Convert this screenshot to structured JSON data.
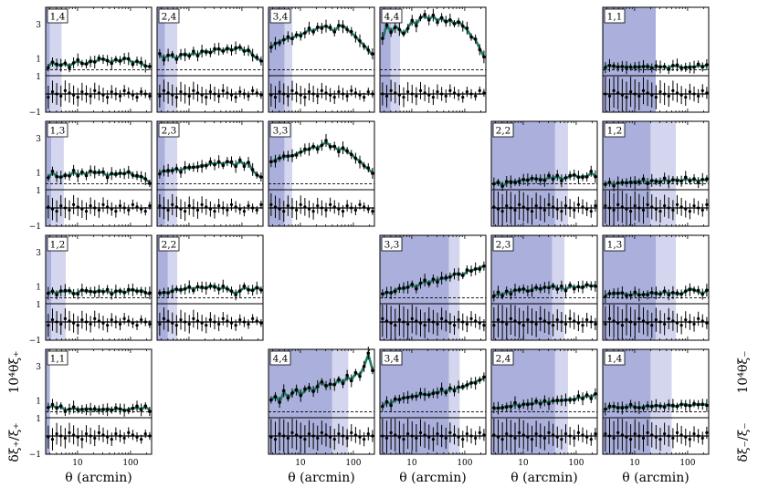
{
  "chart_data": {
    "type": "line",
    "x_axis": {
      "label": "θ (arcmin)",
      "scale": "log",
      "range": [
        2.5,
        250
      ],
      "tick_labels": [
        "10",
        "100"
      ]
    },
    "top_y_axis": {
      "range": [
        0,
        4
      ],
      "tick_labels": [
        "1",
        "3"
      ]
    },
    "bottom_y_axis": {
      "range": [
        -1,
        1
      ],
      "tick_labels": [
        "1",
        "−1"
      ]
    },
    "left_ylabel": {
      "ratio": "δξ₊/ξ₊",
      "main": "10⁴θξ₊"
    },
    "right_ylabel": {
      "ratio": "δξ₋/ξ₋",
      "main": "10⁴θξ₋"
    },
    "colors": {
      "curve": "#1f7a66",
      "scale_cut": "#8e94cf",
      "scale_cut_light": "#d3d6ee",
      "points": "#000000"
    },
    "panels": [
      {
        "label": "1,4",
        "column": 0,
        "row": 0,
        "set": "xi_plus",
        "cut": [
          2.5,
          3.0
        ],
        "light_cut": [
          3.0,
          5.0
        ],
        "y": [
          0.55,
          0.8,
          0.6,
          0.65,
          0.7,
          0.55,
          0.75,
          0.85,
          0.75,
          0.65,
          0.9,
          0.8,
          0.95,
          1.0,
          0.85,
          0.8,
          0.95,
          0.8,
          1.05,
          0.95,
          0.75,
          0.85,
          0.7,
          0.6,
          0.5
        ]
      },
      {
        "label": "2,4",
        "column": 1,
        "row": 0,
        "set": "xi_plus",
        "cut": [
          2.5,
          3.5
        ],
        "light_cut": [
          3.5,
          6.0
        ],
        "y": [
          1.25,
          1.0,
          1.2,
          1.15,
          1.0,
          1.2,
          1.3,
          1.15,
          1.35,
          1.2,
          1.4,
          1.45,
          1.35,
          1.5,
          1.6,
          1.4,
          1.65,
          1.5,
          1.55,
          1.7,
          1.4,
          1.55,
          1.2,
          1.0,
          0.9
        ]
      },
      {
        "label": "3,4",
        "column": 2,
        "row": 0,
        "set": "xi_plus",
        "cut": [
          2.5,
          5.0
        ],
        "light_cut": [
          5.0,
          7.0
        ],
        "y": [
          1.7,
          1.85,
          2.0,
          2.1,
          2.2,
          2.2,
          2.35,
          2.4,
          2.5,
          2.7,
          2.6,
          2.8,
          2.85,
          2.9,
          2.75,
          2.6,
          2.9,
          2.95,
          2.7,
          2.5,
          2.3,
          2.0,
          1.8,
          1.5,
          1.2
        ]
      },
      {
        "label": "4,4",
        "column": 3,
        "row": 0,
        "set": "xi_plus",
        "cut": [
          2.5,
          4.0
        ],
        "light_cut": [
          4.0,
          6.0
        ],
        "y": [
          2.1,
          3.0,
          2.5,
          2.9,
          2.7,
          2.4,
          2.8,
          3.2,
          3.0,
          3.4,
          3.5,
          3.3,
          3.5,
          3.2,
          3.4,
          3.1,
          3.3,
          3.0,
          3.2,
          2.9,
          2.7,
          2.3,
          2.1,
          1.6,
          1.1
        ]
      },
      {
        "label": "1,3",
        "column": 0,
        "row": 1,
        "set": "xi_plus",
        "cut": [
          2.5,
          3.2
        ],
        "light_cut": [
          3.2,
          5.5
        ],
        "y": [
          0.7,
          1.0,
          0.8,
          0.7,
          0.9,
          0.8,
          1.05,
          0.85,
          1.0,
          0.9,
          1.1,
          0.95,
          1.05,
          1.0,
          0.8,
          0.95,
          0.85,
          1.0,
          0.9,
          1.1,
          0.85,
          0.75,
          0.8,
          0.6,
          0.45
        ]
      },
      {
        "label": "2,3",
        "column": 1,
        "row": 1,
        "set": "xi_plus",
        "cut": [
          2.5,
          3.5
        ],
        "light_cut": [
          3.5,
          6.0
        ],
        "y": [
          1.0,
          1.1,
          1.05,
          1.15,
          1.2,
          1.1,
          1.3,
          1.25,
          1.35,
          1.3,
          1.45,
          1.4,
          1.55,
          1.5,
          1.6,
          1.5,
          1.65,
          1.55,
          1.4,
          1.7,
          1.45,
          1.6,
          1.1,
          0.9,
          0.7
        ]
      },
      {
        "label": "3,3",
        "column": 2,
        "row": 1,
        "set": "xi_plus",
        "cut": [
          2.5,
          5.0
        ],
        "light_cut": [
          5.0,
          7.0
        ],
        "y": [
          1.6,
          1.75,
          1.85,
          1.9,
          2.0,
          1.95,
          2.1,
          2.2,
          2.3,
          2.4,
          2.5,
          2.45,
          2.6,
          2.8,
          2.55,
          2.5,
          2.3,
          2.45,
          2.2,
          2.1,
          1.8,
          1.7,
          1.4,
          1.2,
          1.0
        ]
      },
      {
        "label": "1,2",
        "column": 0,
        "row": 2,
        "set": "xi_plus",
        "cut": [
          2.5,
          3.2
        ],
        "light_cut": [
          3.2,
          6.0
        ],
        "y": [
          0.65,
          0.7,
          0.6,
          0.75,
          0.7,
          0.8,
          0.55,
          0.65,
          0.8,
          0.7,
          0.75,
          0.65,
          0.8,
          0.7,
          0.75,
          0.6,
          0.7,
          0.8,
          0.65,
          0.75,
          0.85,
          0.7,
          0.8,
          0.65,
          0.55
        ]
      },
      {
        "label": "2,2",
        "column": 1,
        "row": 2,
        "set": "xi_plus",
        "cut": [
          2.5,
          4.0
        ],
        "light_cut": [
          4.0,
          6.0
        ],
        "y": [
          0.55,
          0.7,
          0.6,
          0.8,
          0.85,
          0.75,
          0.9,
          0.95,
          0.85,
          1.0,
          0.9,
          0.95,
          1.0,
          1.05,
          0.85,
          0.95,
          0.9,
          0.7,
          0.6,
          0.75,
          0.95,
          0.85,
          0.75,
          1.0,
          0.8
        ]
      },
      {
        "label": "1,1",
        "column": 0,
        "row": 3,
        "set": "xi_plus",
        "cut": [
          2.5,
          3.0
        ],
        "light_cut": null,
        "y": [
          0.6,
          0.7,
          0.6,
          0.65,
          0.45,
          0.5,
          0.55,
          0.5,
          0.45,
          0.55,
          0.5,
          0.45,
          0.5,
          0.45,
          0.55,
          0.45,
          0.5,
          0.55,
          0.4,
          0.5,
          0.55,
          0.6,
          0.5,
          0.65,
          0.45
        ]
      },
      {
        "label": "1,1",
        "column": 5,
        "row": 0,
        "set": "xi_minus",
        "cut": [
          2.5,
          25.0
        ],
        "light_cut": null,
        "y": [
          0.55,
          0.6,
          0.5,
          0.55,
          0.5,
          0.55,
          0.5,
          0.45,
          0.55,
          0.5,
          0.6,
          0.45,
          0.5,
          0.55,
          0.5,
          0.45,
          0.6,
          0.55,
          0.5,
          0.45,
          0.55,
          0.5,
          0.6,
          0.55,
          0.6
        ]
      },
      {
        "label": "2,2",
        "column": 4,
        "row": 1,
        "set": "xi_minus",
        "cut": [
          2.5,
          40.0
        ],
        "light_cut": [
          40.0,
          70.0
        ],
        "y": [
          0.3,
          0.5,
          0.2,
          0.4,
          0.5,
          0.4,
          0.55,
          0.6,
          0.5,
          0.7,
          0.6,
          0.65,
          0.55,
          0.75,
          0.65,
          0.8,
          0.6,
          0.7,
          0.75,
          0.9,
          0.7,
          0.8,
          0.75,
          1.0,
          0.8
        ]
      },
      {
        "label": "1,2",
        "column": 5,
        "row": 1,
        "set": "xi_minus",
        "cut": [
          2.5,
          20.0
        ],
        "light_cut": [
          20.0,
          60.0
        ],
        "y": [
          0.35,
          0.4,
          0.3,
          0.4,
          0.35,
          0.45,
          0.4,
          0.5,
          0.45,
          0.55,
          0.4,
          0.5,
          0.55,
          0.45,
          0.6,
          0.5,
          0.55,
          0.6,
          0.5,
          0.65,
          0.55,
          0.6,
          0.5,
          0.6,
          0.55
        ]
      },
      {
        "label": "3,3",
        "column": 3,
        "row": 2,
        "set": "xi_minus",
        "cut": [
          2.5,
          50.0
        ],
        "light_cut": [
          50.0,
          80.0
        ],
        "y": [
          0.5,
          0.7,
          0.6,
          0.8,
          0.9,
          0.85,
          1.0,
          1.1,
          0.95,
          1.2,
          1.3,
          1.2,
          1.4,
          1.35,
          1.5,
          1.45,
          1.6,
          1.7,
          1.8,
          1.65,
          1.9,
          1.95,
          2.0,
          2.1,
          2.2
        ]
      },
      {
        "label": "2,3",
        "column": 4,
        "row": 2,
        "set": "xi_minus",
        "cut": [
          2.5,
          35.0
        ],
        "light_cut": [
          35.0,
          60.0
        ],
        "y": [
          0.45,
          0.6,
          0.5,
          0.7,
          0.65,
          0.8,
          0.75,
          0.9,
          0.7,
          0.85,
          0.95,
          0.8,
          1.0,
          0.9,
          1.1,
          0.85,
          0.95,
          0.8,
          1.05,
          0.95,
          1.0,
          0.9,
          1.15,
          1.0,
          1.1
        ]
      },
      {
        "label": "1,3",
        "column": 5,
        "row": 2,
        "set": "xi_minus",
        "cut": [
          2.5,
          25.0
        ],
        "light_cut": [
          25.0,
          60.0
        ],
        "y": [
          0.5,
          0.6,
          0.55,
          0.65,
          0.6,
          0.55,
          0.5,
          0.6,
          0.55,
          0.5,
          0.6,
          0.65,
          0.55,
          0.6,
          0.7,
          0.6,
          0.65,
          0.55,
          0.6,
          0.7,
          0.9,
          0.8,
          0.7,
          0.6,
          0.75
        ]
      },
      {
        "label": "4,4",
        "column": 2,
        "row": 3,
        "set": "xi_minus",
        "cut": [
          2.5,
          40.0
        ],
        "light_cut": [
          40.0,
          80.0
        ],
        "y": [
          1.0,
          1.3,
          0.9,
          1.5,
          1.2,
          1.4,
          1.7,
          1.3,
          1.6,
          1.8,
          1.5,
          1.9,
          2.1,
          1.8,
          2.0,
          1.9,
          2.3,
          2.0,
          2.4,
          2.2,
          2.6,
          2.5,
          3.0,
          3.7,
          2.8
        ]
      },
      {
        "label": "3,4",
        "column": 3,
        "row": 3,
        "set": "xi_minus",
        "cut": [
          2.5,
          50.0
        ],
        "light_cut": [
          50.0,
          80.0
        ],
        "y": [
          0.7,
          0.9,
          0.8,
          1.1,
          1.0,
          1.2,
          1.15,
          1.3,
          1.25,
          1.35,
          1.4,
          1.3,
          1.5,
          1.45,
          1.6,
          1.5,
          1.7,
          1.65,
          1.8,
          1.75,
          1.95,
          2.0,
          2.1,
          2.2,
          2.3
        ]
      },
      {
        "label": "2,4",
        "column": 4,
        "row": 3,
        "set": "xi_minus",
        "cut": [
          2.5,
          40.0
        ],
        "light_cut": [
          40.0,
          70.0
        ],
        "y": [
          0.5,
          0.6,
          0.55,
          0.7,
          0.65,
          0.8,
          0.7,
          0.75,
          0.85,
          0.8,
          0.9,
          0.85,
          0.95,
          0.9,
          1.0,
          0.95,
          1.05,
          1.0,
          1.1,
          1.05,
          1.2,
          1.15,
          1.3,
          1.2,
          1.4
        ]
      },
      {
        "label": "1,4",
        "column": 5,
        "row": 3,
        "set": "xi_minus",
        "cut": [
          2.5,
          20.0
        ],
        "light_cut": [
          20.0,
          50.0
        ],
        "y": [
          0.5,
          0.6,
          0.7,
          0.55,
          0.65,
          0.6,
          0.7,
          0.65,
          0.55,
          0.65,
          0.7,
          0.6,
          0.75,
          0.65,
          0.7,
          0.75,
          0.65,
          0.7,
          0.75,
          0.8,
          0.7,
          0.75,
          0.8,
          0.75,
          0.8
        ]
      }
    ]
  }
}
